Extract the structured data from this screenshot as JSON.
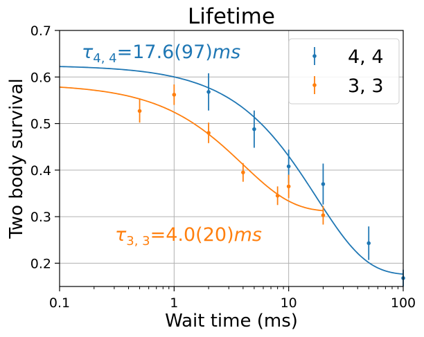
{
  "chart_data": {
    "type": "scatter",
    "title": "Lifetime",
    "xlabel": "Wait time (ms)",
    "ylabel": "Two body survival",
    "xscale": "log",
    "xlim": [
      0.1,
      100
    ],
    "ylim": [
      0.15,
      0.7
    ],
    "grid": true,
    "legend_position": "top-right",
    "xticks": [
      {
        "value": 0.1,
        "label": "0.1"
      },
      {
        "value": 1,
        "label": "1"
      },
      {
        "value": 10,
        "label": "10"
      },
      {
        "value": 100,
        "label": "100"
      }
    ],
    "yticks": [
      {
        "value": 0.2,
        "label": "0.2"
      },
      {
        "value": 0.3,
        "label": "0.3"
      },
      {
        "value": 0.4,
        "label": "0.4"
      },
      {
        "value": 0.5,
        "label": "0.5"
      },
      {
        "value": 0.6,
        "label": "0.6"
      },
      {
        "value": 0.7,
        "label": "0.7"
      }
    ],
    "series": [
      {
        "name": "4, 4",
        "color": "#1f77b4",
        "points": [
          {
            "x": 2,
            "y": 0.568,
            "err": 0.04
          },
          {
            "x": 5,
            "y": 0.488,
            "err": 0.04
          },
          {
            "x": 10,
            "y": 0.408,
            "err": 0.036
          },
          {
            "x": 20,
            "y": 0.37,
            "err": 0.044
          },
          {
            "x": 50,
            "y": 0.243,
            "err": 0.036
          },
          {
            "x": 100,
            "y": 0.168,
            "err": 0.018
          }
        ],
        "fit": {
          "A": 0.45,
          "tau": 17.6,
          "C": 0.175
        },
        "annotation": {
          "symbol": "τ",
          "subscript": "4, 4",
          "value": "=17.6(97)",
          "unit": "ms"
        }
      },
      {
        "name": "3, 3",
        "color": "#ff7f0e",
        "points": [
          {
            "x": 0.5,
            "y": 0.527,
            "err": 0.025
          },
          {
            "x": 1,
            "y": 0.562,
            "err": 0.022
          },
          {
            "x": 2,
            "y": 0.48,
            "err": 0.022
          },
          {
            "x": 4,
            "y": 0.395,
            "err": 0.02
          },
          {
            "x": 8,
            "y": 0.345,
            "err": 0.02
          },
          {
            "x": 10,
            "y": 0.365,
            "err": 0.025
          },
          {
            "x": 20,
            "y": 0.303,
            "err": 0.02
          }
        ],
        "fit": {
          "A": 0.274,
          "tau": 4.0,
          "C": 0.311,
          "xmax": 20
        },
        "annotation": {
          "symbol": "τ",
          "subscript": "3, 3",
          "value": "=4.0(20)",
          "unit": "ms"
        }
      }
    ]
  }
}
